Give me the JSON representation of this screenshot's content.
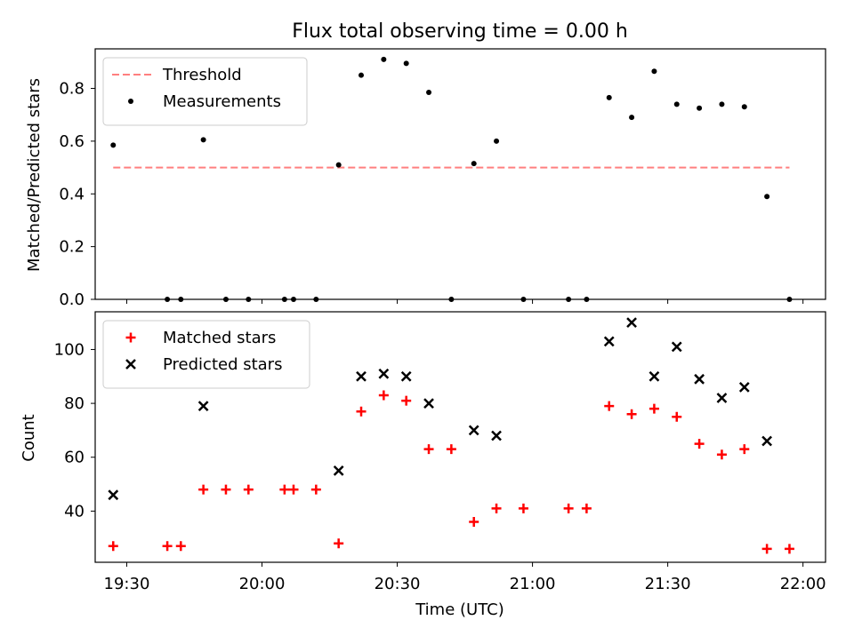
{
  "chart_data": [
    {
      "type": "scatter",
      "title": "Flux total observing time = 0.00 h",
      "xlabel": "",
      "ylabel": "Matched/Predicted stars",
      "xlim": [
        "19:23",
        "22:05"
      ],
      "ylim": [
        0,
        0.95
      ],
      "yticks": [
        "0.0",
        "0.2",
        "0.4",
        "0.6",
        "0.8"
      ],
      "legend_position": "top-left",
      "grid": false,
      "threshold": {
        "name": "Threshold",
        "value": 0.5,
        "x_start": "19:27",
        "x_end": "21:57",
        "color": "#ff7f7f",
        "style": "dashed"
      },
      "series": [
        {
          "name": "Measurements",
          "marker": "dot",
          "color": "#000000",
          "points": [
            [
              "19:27",
              0.585
            ],
            [
              "19:39",
              0.0
            ],
            [
              "19:42",
              0.0
            ],
            [
              "19:47",
              0.605
            ],
            [
              "19:52",
              0.0
            ],
            [
              "19:57",
              0.0
            ],
            [
              "20:05",
              0.0
            ],
            [
              "20:07",
              0.0
            ],
            [
              "20:12",
              0.0
            ],
            [
              "20:17",
              0.51
            ],
            [
              "20:22",
              0.85
            ],
            [
              "20:27",
              0.91
            ],
            [
              "20:32",
              0.895
            ],
            [
              "20:37",
              0.785
            ],
            [
              "20:42",
              0.0
            ],
            [
              "20:47",
              0.515
            ],
            [
              "20:52",
              0.6
            ],
            [
              "20:58",
              0.0
            ],
            [
              "21:08",
              0.0
            ],
            [
              "21:12",
              0.0
            ],
            [
              "21:17",
              0.765
            ],
            [
              "21:22",
              0.69
            ],
            [
              "21:27",
              0.865
            ],
            [
              "21:32",
              0.74
            ],
            [
              "21:37",
              0.725
            ],
            [
              "21:42",
              0.74
            ],
            [
              "21:47",
              0.73
            ],
            [
              "21:52",
              0.39
            ],
            [
              "21:57",
              0.0
            ]
          ]
        }
      ]
    },
    {
      "type": "scatter",
      "title": "",
      "xlabel": "Time (UTC)",
      "ylabel": "Count",
      "xlim": [
        "19:23",
        "22:05"
      ],
      "ylim": [
        21,
        114
      ],
      "yticks": [
        "40",
        "60",
        "80",
        "100"
      ],
      "xticks": [
        "19:30",
        "20:00",
        "20:30",
        "21:00",
        "21:30",
        "22:00"
      ],
      "legend_position": "top-left",
      "grid": false,
      "series": [
        {
          "name": "Matched stars",
          "marker": "plus",
          "color": "#ff0000",
          "points": [
            [
              "19:27",
              27
            ],
            [
              "19:39",
              27
            ],
            [
              "19:42",
              27
            ],
            [
              "19:47",
              48
            ],
            [
              "19:52",
              48
            ],
            [
              "19:57",
              48
            ],
            [
              "20:05",
              48
            ],
            [
              "20:07",
              48
            ],
            [
              "20:12",
              48
            ],
            [
              "20:17",
              28
            ],
            [
              "20:22",
              77
            ],
            [
              "20:27",
              83
            ],
            [
              "20:32",
              81
            ],
            [
              "20:37",
              63
            ],
            [
              "20:42",
              63
            ],
            [
              "20:47",
              36
            ],
            [
              "20:52",
              41
            ],
            [
              "20:58",
              41
            ],
            [
              "21:08",
              41
            ],
            [
              "21:12",
              41
            ],
            [
              "21:17",
              79
            ],
            [
              "21:22",
              76
            ],
            [
              "21:27",
              78
            ],
            [
              "21:32",
              75
            ],
            [
              "21:37",
              65
            ],
            [
              "21:42",
              61
            ],
            [
              "21:47",
              63
            ],
            [
              "21:52",
              26
            ],
            [
              "21:57",
              26
            ]
          ]
        },
        {
          "name": "Predicted stars",
          "marker": "x",
          "color": "#000000",
          "points": [
            [
              "19:27",
              46
            ],
            [
              "19:47",
              79
            ],
            [
              "20:17",
              55
            ],
            [
              "20:22",
              90
            ],
            [
              "20:27",
              91
            ],
            [
              "20:32",
              90
            ],
            [
              "20:37",
              80
            ],
            [
              "20:47",
              70
            ],
            [
              "20:52",
              68
            ],
            [
              "21:17",
              103
            ],
            [
              "21:22",
              110
            ],
            [
              "21:27",
              90
            ],
            [
              "21:32",
              101
            ],
            [
              "21:37",
              89
            ],
            [
              "21:42",
              82
            ],
            [
              "21:47",
              86
            ],
            [
              "21:52",
              66
            ]
          ]
        }
      ]
    }
  ]
}
